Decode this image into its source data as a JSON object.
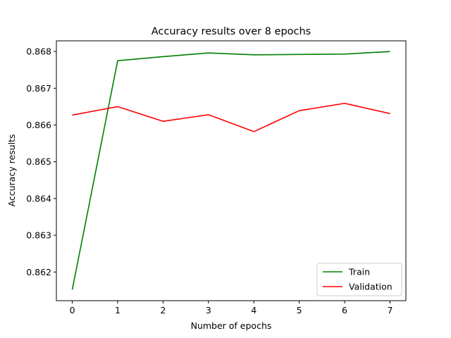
{
  "chart_data": {
    "type": "line",
    "title": "Accuracy results over 8 epochs",
    "xlabel": "Number of epochs",
    "ylabel": "Accuracy results",
    "x": [
      0,
      1,
      2,
      3,
      4,
      5,
      6,
      7
    ],
    "xlim": [
      -0.35,
      7.35
    ],
    "ylim": [
      0.86122,
      0.86829
    ],
    "xticks": [
      0,
      1,
      2,
      3,
      4,
      5,
      6,
      7
    ],
    "yticks": [
      0.862,
      0.863,
      0.864,
      0.865,
      0.866,
      0.867,
      0.868
    ],
    "ytick_labels": [
      "0.862",
      "0.863",
      "0.864",
      "0.865",
      "0.866",
      "0.867",
      "0.868"
    ],
    "grid": false,
    "legend_position": "bottom-right",
    "series": [
      {
        "name": "Train",
        "color": "#008000",
        "values": [
          0.86152,
          0.86775,
          0.86786,
          0.86796,
          0.86791,
          0.86792,
          0.86793,
          0.868
        ]
      },
      {
        "name": "Validation",
        "color": "#ff0000",
        "values": [
          0.86627,
          0.8665,
          0.8661,
          0.86628,
          0.86582,
          0.86639,
          0.86659,
          0.86631
        ]
      }
    ]
  }
}
